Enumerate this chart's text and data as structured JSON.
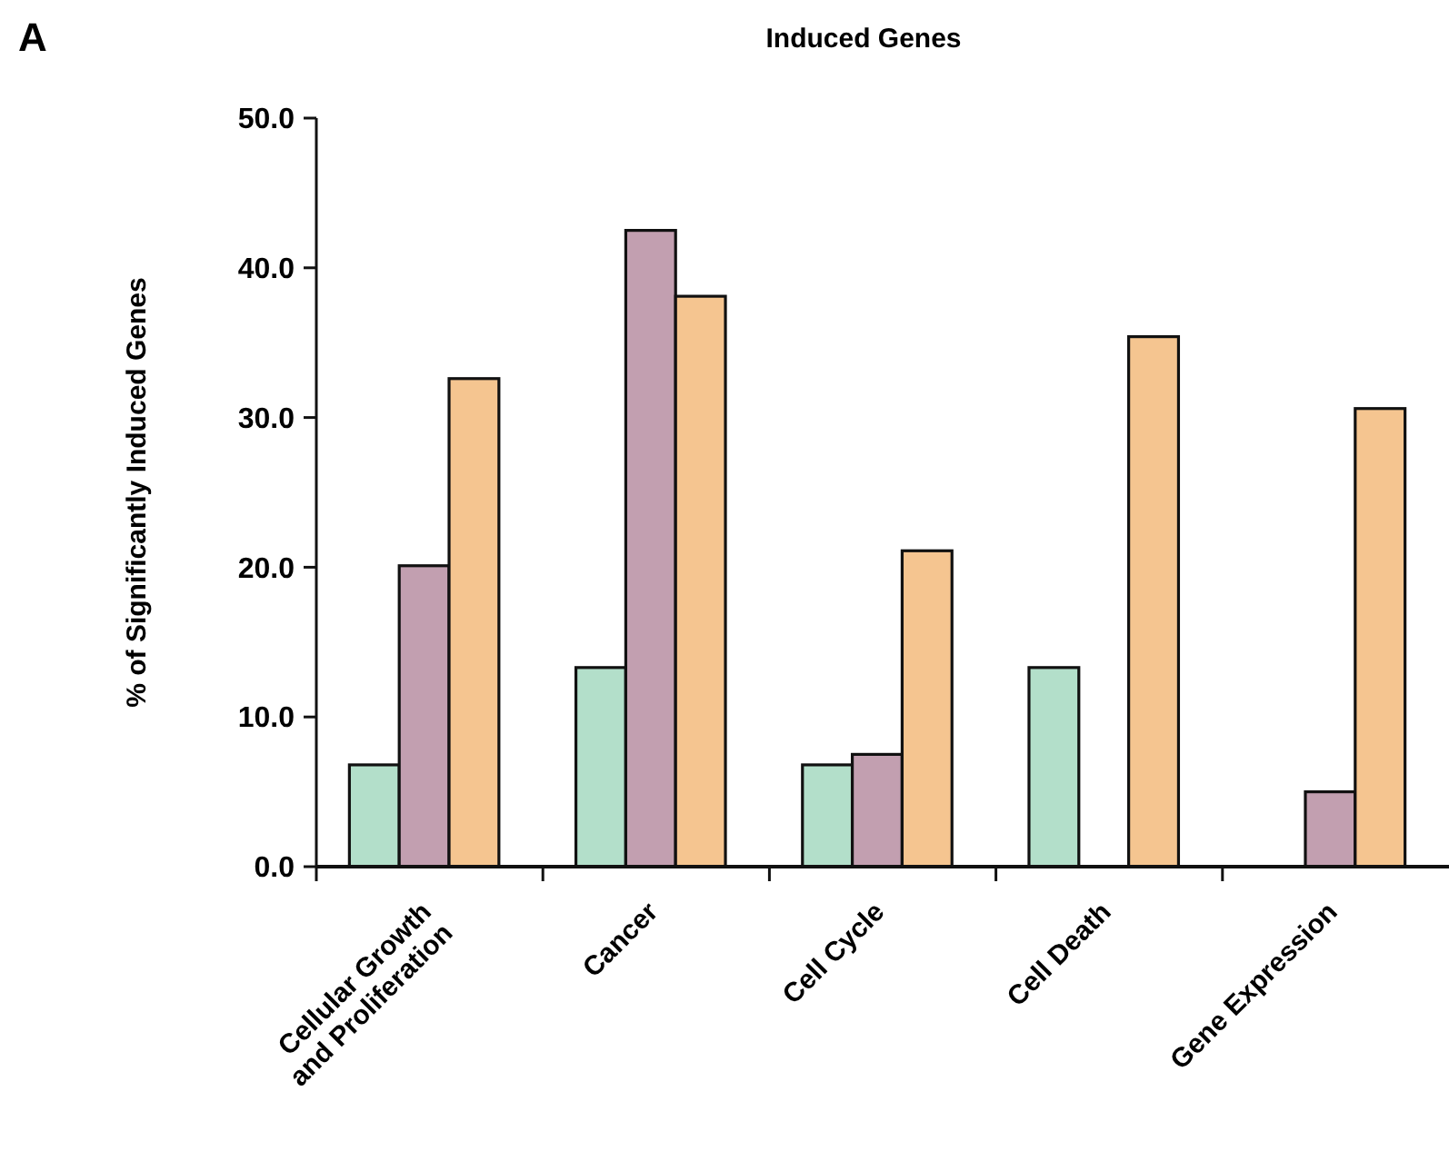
{
  "chart_data": {
    "type": "bar",
    "title": "Induced Genes",
    "ylabel": "% of Significantly Induced Genes",
    "annotations": [
      "A"
    ],
    "categories": [
      "Cellular Growth\nand Proliferation",
      "Cancer",
      "Cell Cycle",
      "Cell Death",
      "Gene Expression"
    ],
    "series": [
      {
        "color": "#b3dfca",
        "values": [
          6.8,
          13.3,
          6.8,
          13.3,
          null
        ]
      },
      {
        "color": "#c29fb0",
        "values": [
          20.1,
          42.5,
          7.5,
          null,
          5.0
        ]
      },
      {
        "color": "#f5c590",
        "values": [
          32.6,
          38.1,
          21.1,
          35.4,
          30.6
        ]
      }
    ],
    "ylim": [
      0,
      50
    ],
    "yticks": [
      {
        "value": 0,
        "label": "0.0"
      },
      {
        "value": 10,
        "label": "10.0"
      },
      {
        "value": 20,
        "label": "20.0"
      },
      {
        "value": 30,
        "label": "30.0"
      },
      {
        "value": 40,
        "label": "40.0"
      },
      {
        "value": 50,
        "label": "50.0"
      }
    ],
    "grid": false
  }
}
